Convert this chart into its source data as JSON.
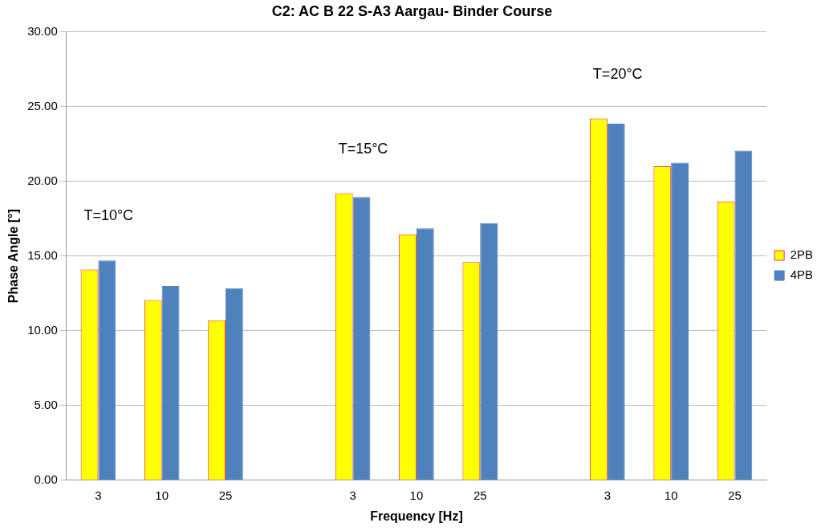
{
  "chart_data": {
    "type": "bar",
    "title": "C2: AC B 22 S-A3 Aargau- Binder Course",
    "xlabel": "Frequency [Hz]",
    "ylabel": "Phase Angle [°]",
    "categories": [
      "3",
      "10",
      "25",
      null,
      "3",
      "10",
      "25",
      null,
      "3",
      "10",
      "25"
    ],
    "series": [
      {
        "name": "2PB",
        "color": "#ffff00",
        "values": [
          14.1,
          12.05,
          10.7,
          null,
          19.2,
          16.45,
          14.6,
          null,
          24.2,
          21.0,
          18.65
        ]
      },
      {
        "name": "4PB",
        "color": "#4f81bd",
        "values": [
          14.7,
          13.0,
          12.85,
          null,
          18.95,
          16.85,
          17.2,
          null,
          23.85,
          21.25,
          22.05
        ]
      }
    ],
    "ylim": [
      0,
      30
    ],
    "yticks": [
      {
        "value": 0,
        "label": "0.00"
      },
      {
        "value": 5,
        "label": "5.00"
      },
      {
        "value": 10,
        "label": "10.00"
      },
      {
        "value": 15,
        "label": "15.00"
      },
      {
        "value": 20,
        "label": "20.00"
      },
      {
        "value": 25,
        "label": "25.00"
      },
      {
        "value": 30,
        "label": "30.00"
      }
    ],
    "grid": "y",
    "legend": "right",
    "annotations": [
      "T=10°C",
      "T=15°C",
      "T=20°C"
    ]
  }
}
